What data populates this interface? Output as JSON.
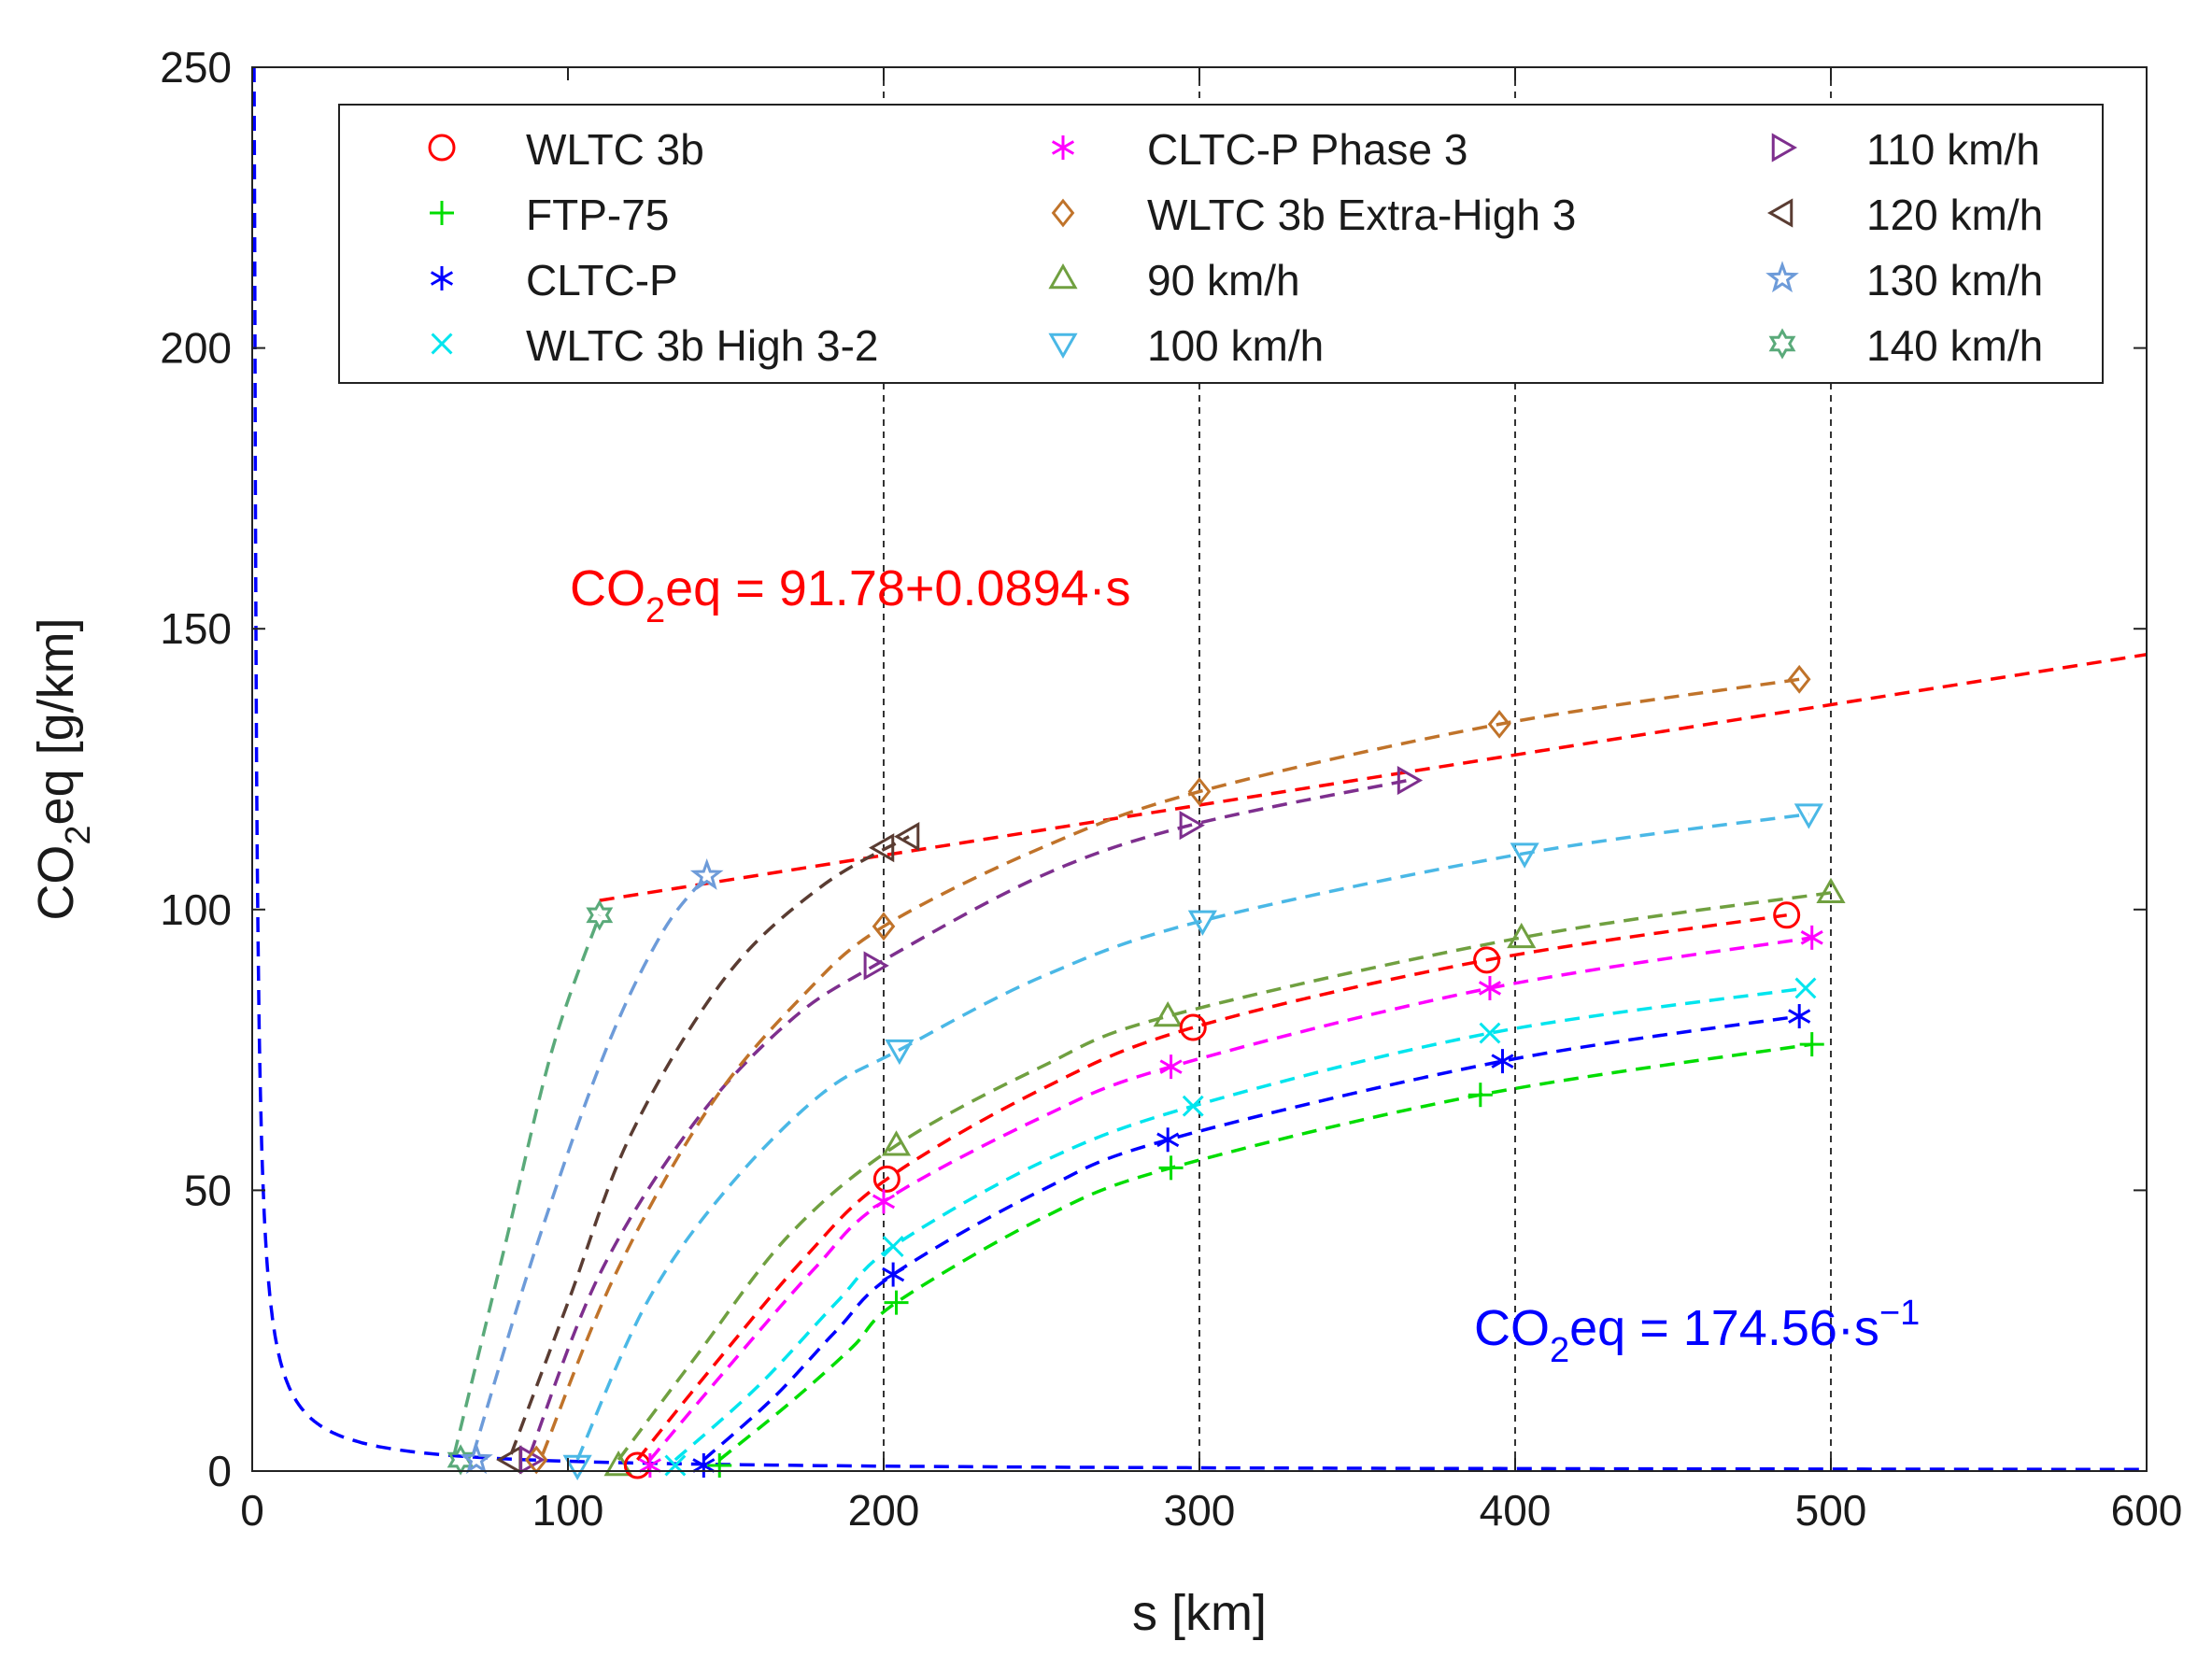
{
  "chart_data": {
    "type": "line",
    "title": "",
    "xlabel": "s [km]",
    "ylabel": {
      "base": "CO",
      "sub": "2",
      "rest": "eq [g/km]"
    },
    "xlim": [
      0,
      600
    ],
    "ylim": [
      0,
      250
    ],
    "xticks": [
      0,
      100,
      200,
      300,
      400,
      500,
      600
    ],
    "yticks": [
      0,
      50,
      100,
      150,
      200,
      250
    ],
    "vlines": [
      200,
      300,
      400,
      500
    ],
    "colors": {
      "wltc3b": "#ff0000",
      "ftp75": "#00dd00",
      "cltcp": "#0000ff",
      "wltc_high": "#00e5ee",
      "cltcp_p3": "#ff00ff",
      "wltc_xh": "#c0732a",
      "v90": "#70a040",
      "v100": "#4ab8e6",
      "v110": "#7e2f8e",
      "v120": "#5a3c32",
      "v130": "#6d9bd9",
      "v140": "#5aaa7a"
    },
    "legend": {
      "position": "top",
      "entries": [
        {
          "key": "wltc3b",
          "label": "WLTC 3b",
          "marker": "circle"
        },
        {
          "key": "ftp75",
          "label": "FTP-75",
          "marker": "plus"
        },
        {
          "key": "cltcp",
          "label": "CLTC-P",
          "marker": "asterisk"
        },
        {
          "key": "wltc_high",
          "label": "WLTC 3b High 3-2",
          "marker": "x"
        },
        {
          "key": "cltcp_p3",
          "label": "CLTC-P Phase 3",
          "marker": "asterisk"
        },
        {
          "key": "wltc_xh",
          "label": "WLTC 3b Extra-High 3",
          "marker": "diamond"
        },
        {
          "key": "v90",
          "label": "90 km/h",
          "marker": "triangle-up"
        },
        {
          "key": "v100",
          "label": "100 km/h",
          "marker": "triangle-down"
        },
        {
          "key": "v110",
          "label": "110 km/h",
          "marker": "triangle-right"
        },
        {
          "key": "v120",
          "label": "120 km/h",
          "marker": "triangle-left"
        },
        {
          "key": "v130",
          "label": "130 km/h",
          "marker": "pentagram"
        },
        {
          "key": "v140",
          "label": "140 km/h",
          "marker": "hexagram"
        }
      ]
    },
    "series": [
      {
        "key": "v140",
        "name": "140 km/h",
        "points": [
          [
            66,
            2
          ],
          [
            110,
            99
          ]
        ],
        "curve": [
          [
            64,
            3
          ],
          [
            80,
            40
          ],
          [
            95,
            75
          ],
          [
            110,
            99
          ]
        ]
      },
      {
        "key": "v130",
        "name": "130 km/h",
        "points": [
          [
            71,
            2
          ],
          [
            144,
            106
          ]
        ],
        "curve": [
          [
            70,
            3
          ],
          [
            90,
            40
          ],
          [
            112,
            75
          ],
          [
            130,
            96
          ],
          [
            144,
            106
          ]
        ]
      },
      {
        "key": "v120",
        "name": "120 km/h",
        "points": [
          [
            82,
            2
          ],
          [
            200,
            111
          ],
          [
            208,
            113
          ]
        ],
        "curve": [
          [
            82,
            3
          ],
          [
            100,
            30
          ],
          [
            120,
            60
          ],
          [
            150,
            88
          ],
          [
            180,
            104
          ],
          [
            208,
            113
          ]
        ]
      },
      {
        "key": "v110",
        "name": "110 km/h",
        "points": [
          [
            88,
            2
          ],
          [
            197,
            90
          ],
          [
            297,
            115
          ],
          [
            366,
            123
          ]
        ],
        "curve": [
          [
            88,
            3
          ],
          [
            110,
            35
          ],
          [
            140,
            62
          ],
          [
            170,
            80
          ],
          [
            197,
            90
          ],
          [
            250,
            106
          ],
          [
            297,
            115
          ],
          [
            366,
            123
          ]
        ]
      },
      {
        "key": "wltc_xh",
        "name": "WLTC 3b Extra-High 3",
        "points": [
          [
            90,
            2
          ],
          [
            200,
            97
          ],
          [
            300,
            121
          ],
          [
            395,
            133
          ],
          [
            490,
            141
          ]
        ],
        "curve": [
          [
            92,
            3
          ],
          [
            115,
            35
          ],
          [
            145,
            65
          ],
          [
            175,
            85
          ],
          [
            200,
            97
          ],
          [
            250,
            111
          ],
          [
            300,
            121
          ],
          [
            395,
            133
          ],
          [
            490,
            141
          ]
        ]
      },
      {
        "key": "v100",
        "name": "100 km/h",
        "points": [
          [
            103,
            1
          ],
          [
            205,
            75
          ],
          [
            301,
            98
          ],
          [
            403,
            110
          ],
          [
            493,
            117
          ]
        ],
        "curve": [
          [
            103,
            2
          ],
          [
            125,
            30
          ],
          [
            150,
            50
          ],
          [
            180,
            67
          ],
          [
            205,
            75
          ],
          [
            250,
            88
          ],
          [
            301,
            98
          ],
          [
            403,
            110
          ],
          [
            493,
            117
          ]
        ]
      },
      {
        "key": "v90",
        "name": "90 km/h",
        "points": [
          [
            116,
            1
          ],
          [
            204,
            58
          ],
          [
            290,
            81
          ],
          [
            402,
            95
          ],
          [
            500,
            103
          ]
        ],
        "curve": [
          [
            116,
            2
          ],
          [
            140,
            20
          ],
          [
            170,
            42
          ],
          [
            204,
            58
          ],
          [
            250,
            72
          ],
          [
            290,
            81
          ],
          [
            402,
            95
          ],
          [
            500,
            103
          ]
        ]
      },
      {
        "key": "wltc3b",
        "name": "WLTC 3b",
        "points": [
          [
            122,
            1
          ],
          [
            201,
            52
          ],
          [
            298,
            79
          ],
          [
            391,
            91
          ],
          [
            486,
            99
          ]
        ],
        "curve": [
          [
            122,
            2
          ],
          [
            145,
            18
          ],
          [
            175,
            38
          ],
          [
            201,
            52
          ],
          [
            250,
            68
          ],
          [
            298,
            79
          ],
          [
            391,
            91
          ],
          [
            486,
            99
          ]
        ]
      },
      {
        "key": "cltcp_p3",
        "name": "CLTC-P Phase 3",
        "points": [
          [
            126,
            1
          ],
          [
            200,
            48
          ],
          [
            291,
            72
          ],
          [
            392,
            86
          ],
          [
            494,
            95
          ]
        ],
        "curve": [
          [
            126,
            2
          ],
          [
            150,
            18
          ],
          [
            178,
            36
          ],
          [
            200,
            48
          ],
          [
            250,
            63
          ],
          [
            291,
            72
          ],
          [
            392,
            86
          ],
          [
            494,
            95
          ]
        ]
      },
      {
        "key": "wltc_high",
        "name": "WLTC 3b High 3-2",
        "points": [
          [
            134,
            1
          ],
          [
            203,
            40
          ],
          [
            298,
            65
          ],
          [
            392,
            78
          ],
          [
            492,
            86
          ]
        ],
        "curve": [
          [
            134,
            2
          ],
          [
            160,
            15
          ],
          [
            185,
            30
          ],
          [
            203,
            40
          ],
          [
            250,
            55
          ],
          [
            298,
            65
          ],
          [
            392,
            78
          ],
          [
            492,
            86
          ]
        ]
      },
      {
        "key": "cltcp",
        "name": "CLTC-P",
        "points": [
          [
            143,
            1
          ],
          [
            203,
            35
          ],
          [
            290,
            59
          ],
          [
            396,
            73
          ],
          [
            490,
            81
          ]
        ],
        "curve": [
          [
            143,
            2
          ],
          [
            165,
            13
          ],
          [
            185,
            25
          ],
          [
            203,
            35
          ],
          [
            250,
            50
          ],
          [
            290,
            59
          ],
          [
            396,
            73
          ],
          [
            490,
            81
          ]
        ]
      },
      {
        "key": "ftp75",
        "name": "FTP-75",
        "points": [
          [
            148,
            1
          ],
          [
            204,
            30
          ],
          [
            291,
            54
          ],
          [
            389,
            67
          ],
          [
            494,
            76
          ]
        ],
        "curve": [
          [
            148,
            2
          ],
          [
            170,
            12
          ],
          [
            190,
            22
          ],
          [
            204,
            30
          ],
          [
            250,
            45
          ],
          [
            291,
            54
          ],
          [
            389,
            67
          ],
          [
            494,
            76
          ]
        ]
      }
    ],
    "fits": [
      {
        "key": "linear",
        "color": "#ff0000",
        "equation": {
          "base": "CO",
          "sub": "2",
          "rest": "eq = 91.78+0.0894·s"
        },
        "intercept": 91.78,
        "slope": 0.0894,
        "x_range": [
          110,
          600
        ]
      },
      {
        "key": "inverse",
        "color": "#0000ff",
        "equation": {
          "base": "CO",
          "sub": "2",
          "rest": "eq = 174.56·s",
          "sup": "−1"
        },
        "coefficient": 174.56,
        "x_range": [
          0.6,
          600
        ]
      }
    ]
  }
}
